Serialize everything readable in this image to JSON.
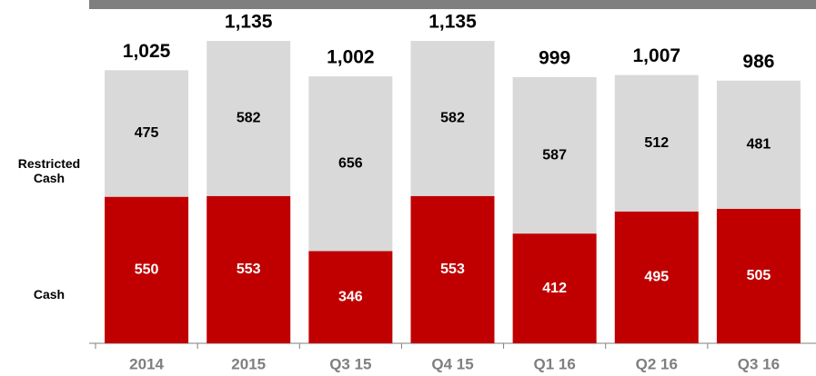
{
  "chart_data": {
    "type": "stacked_bar",
    "categories": [
      "2014",
      "2015",
      "Q3 15",
      "Q4 15",
      "Q1 16",
      "Q2 16",
      "Q3 16"
    ],
    "series": [
      {
        "name": "Cash",
        "color": "#c00000",
        "values": [
          550,
          553,
          346,
          553,
          412,
          495,
          505
        ]
      },
      {
        "name": "Restricted Cash",
        "color": "#d9d9d9",
        "values": [
          475,
          582,
          656,
          582,
          587,
          512,
          481
        ]
      }
    ],
    "total_labels": [
      "1,025",
      "1,135",
      "1,002",
      "1,135",
      "999",
      "1,007",
      "986"
    ],
    "ylim": [
      0,
      1200
    ]
  }
}
